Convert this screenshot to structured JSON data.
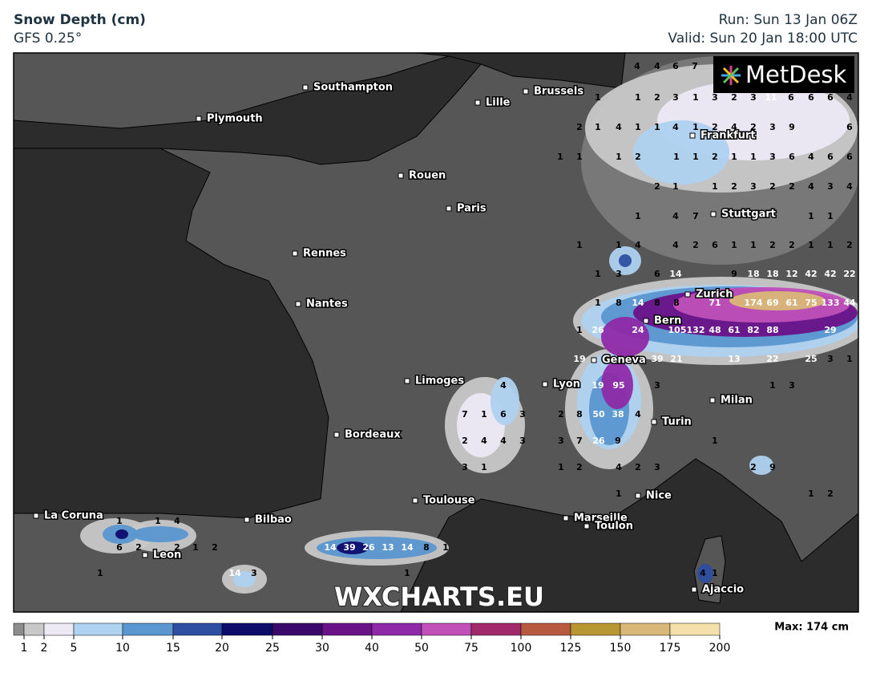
{
  "header": {
    "title": "Snow Depth (cm)",
    "model": "GFS 0.25°",
    "run": "Run: Sun 13 Jan 06Z",
    "valid": "Valid: Sun 20 Jan 18:00 UTC"
  },
  "logo": "MetDesk",
  "watermark": "WXCHARTS.EU",
  "cities": [
    "Southampton",
    "Brussels",
    "Lille",
    "Plymouth",
    "Frankfurt",
    "Rouen",
    "Paris",
    "Stuttgart",
    "Rennes",
    "Zurich",
    "Nantes",
    "Bern",
    "Geneva",
    "Limoges",
    "Lyon",
    "Milan",
    "Turin",
    "Bordeaux",
    "Nice",
    "Toulouse",
    "La Coruna",
    "Marseille",
    "Toulon",
    "Bilbao",
    "Leon",
    "Ajaccio"
  ],
  "snow_labels": [
    4,
    4,
    6,
    7,
    1,
    1,
    2,
    3,
    1,
    3,
    2,
    3,
    11,
    6,
    6,
    6,
    4,
    2,
    1,
    4,
    1,
    1,
    4,
    1,
    2,
    4,
    2,
    3,
    9,
    6,
    1,
    1,
    1,
    2,
    1,
    1,
    2,
    1,
    1,
    3,
    6,
    4,
    6,
    6,
    2,
    1,
    1,
    2,
    3,
    2,
    2,
    4,
    3,
    4,
    1,
    4,
    7,
    1,
    1,
    1,
    1,
    4,
    4,
    2,
    6,
    1,
    1,
    2,
    2,
    1,
    1,
    2,
    1,
    3,
    6,
    14,
    9,
    18,
    18,
    12,
    42,
    42,
    22,
    1,
    8,
    14,
    8,
    8,
    71,
    174,
    69,
    61,
    75,
    133,
    44,
    1,
    26,
    24,
    105,
    132,
    48,
    61,
    82,
    88,
    29,
    19,
    39,
    21,
    13,
    22,
    25,
    3,
    1,
    4,
    19,
    95,
    3,
    1,
    3,
    7,
    1,
    6,
    3,
    2,
    8,
    50,
    38,
    4,
    2,
    4,
    4,
    3,
    3,
    7,
    26,
    9,
    1,
    3,
    1,
    1,
    2,
    4,
    2,
    3,
    2,
    9,
    1,
    1,
    2,
    1,
    1,
    4,
    6,
    2,
    2,
    1,
    2,
    14,
    39,
    26,
    13,
    14,
    8,
    1,
    1,
    14,
    3,
    1,
    4,
    1
  ],
  "legend": {
    "ticks": [
      1,
      2,
      5,
      10,
      15,
      20,
      25,
      30,
      40,
      50,
      75,
      100,
      125,
      150,
      175,
      200
    ],
    "colors": [
      "#8c8c8c",
      "#c8c8c8",
      "#ece8f4",
      "#aed2f0",
      "#5a96d0",
      "#2e4ea2",
      "#0c0c6a",
      "#3a0a6a",
      "#6a1288",
      "#8e2aa8",
      "#c050b8",
      "#a02a6a",
      "#b85a40",
      "#b89632",
      "#d8b878",
      "#f4e0a8"
    ],
    "max_label": "Max: 174 cm"
  }
}
